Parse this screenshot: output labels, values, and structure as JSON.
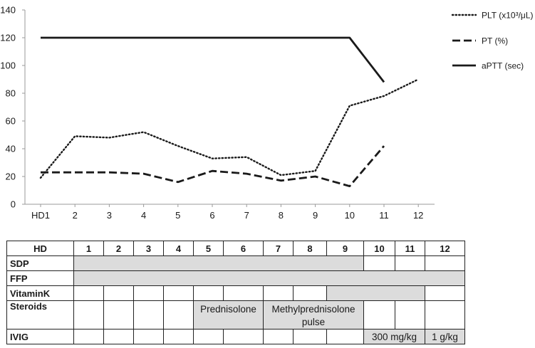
{
  "chart_data": {
    "type": "line",
    "categories": [
      "HD1",
      "2",
      "3",
      "4",
      "5",
      "6",
      "7",
      "8",
      "9",
      "10",
      "11",
      "12"
    ],
    "ylim": [
      0,
      140
    ],
    "yticks": [
      "0",
      "20",
      "40",
      "60",
      "80",
      "100",
      "120",
      "140"
    ],
    "grid": false,
    "legend_position": "top-right",
    "series": [
      {
        "name": "PLT (x10³/μL)",
        "style": "dotted",
        "color": "#1a1a1a",
        "values": [
          19,
          49,
          48,
          52,
          42,
          33,
          34,
          21,
          24,
          71,
          78,
          90
        ]
      },
      {
        "name": "PT (%)",
        "style": "dashed",
        "color": "#1a1a1a",
        "values": [
          23,
          23,
          23,
          22,
          16,
          24,
          22,
          17,
          20,
          13,
          42,
          null
        ]
      },
      {
        "name": "aPTT (sec)",
        "style": "solid",
        "color": "#1a1a1a",
        "values": [
          120,
          120,
          120,
          120,
          120,
          120,
          120,
          120,
          120,
          120,
          88,
          null
        ]
      }
    ]
  },
  "table": {
    "header_label": "HD",
    "days": [
      "1",
      "2",
      "3",
      "4",
      "5",
      "6",
      "7",
      "8",
      "9",
      "10",
      "11",
      "12"
    ],
    "shade_color": "#dcdcdc",
    "rows": [
      {
        "label": "SDP",
        "segments": [
          {
            "span": 9,
            "shaded": true,
            "text": ""
          },
          {
            "span": 1,
            "shaded": false,
            "text": ""
          },
          {
            "span": 1,
            "shaded": false,
            "text": ""
          },
          {
            "span": 1,
            "shaded": false,
            "text": ""
          }
        ]
      },
      {
        "label": "FFP",
        "segments": [
          {
            "span": 12,
            "shaded": true,
            "text": ""
          }
        ]
      },
      {
        "label": "VitaminK",
        "segments": [
          {
            "span": 1,
            "shaded": false,
            "text": ""
          },
          {
            "span": 1,
            "shaded": false,
            "text": ""
          },
          {
            "span": 1,
            "shaded": false,
            "text": ""
          },
          {
            "span": 1,
            "shaded": false,
            "text": ""
          },
          {
            "span": 1,
            "shaded": false,
            "text": ""
          },
          {
            "span": 1,
            "shaded": false,
            "text": ""
          },
          {
            "span": 1,
            "shaded": false,
            "text": ""
          },
          {
            "span": 1,
            "shaded": false,
            "text": ""
          },
          {
            "span": 3,
            "shaded": true,
            "text": ""
          },
          {
            "span": 1,
            "shaded": false,
            "text": ""
          }
        ]
      },
      {
        "label": "Steroids",
        "tall": true,
        "segments": [
          {
            "span": 1,
            "shaded": false,
            "text": ""
          },
          {
            "span": 1,
            "shaded": false,
            "text": ""
          },
          {
            "span": 1,
            "shaded": false,
            "text": ""
          },
          {
            "span": 1,
            "shaded": false,
            "text": ""
          },
          {
            "span": 2,
            "shaded": true,
            "text": "Prednisolone"
          },
          {
            "span": 3,
            "shaded": true,
            "text": "Methylprednisolone pulse"
          },
          {
            "span": 1,
            "shaded": false,
            "text": ""
          },
          {
            "span": 1,
            "shaded": false,
            "text": ""
          },
          {
            "span": 1,
            "shaded": false,
            "text": ""
          }
        ]
      },
      {
        "label": "IVIG",
        "segments": [
          {
            "span": 1,
            "shaded": false,
            "text": ""
          },
          {
            "span": 1,
            "shaded": false,
            "text": ""
          },
          {
            "span": 1,
            "shaded": false,
            "text": ""
          },
          {
            "span": 1,
            "shaded": false,
            "text": ""
          },
          {
            "span": 1,
            "shaded": false,
            "text": ""
          },
          {
            "span": 1,
            "shaded": false,
            "text": ""
          },
          {
            "span": 1,
            "shaded": false,
            "text": ""
          },
          {
            "span": 1,
            "shaded": false,
            "text": ""
          },
          {
            "span": 1,
            "shaded": false,
            "text": ""
          },
          {
            "span": 2,
            "shaded": true,
            "text": "300 mg/kg"
          },
          {
            "span": 1,
            "shaded": true,
            "text": "1 g/kg"
          }
        ]
      }
    ]
  }
}
